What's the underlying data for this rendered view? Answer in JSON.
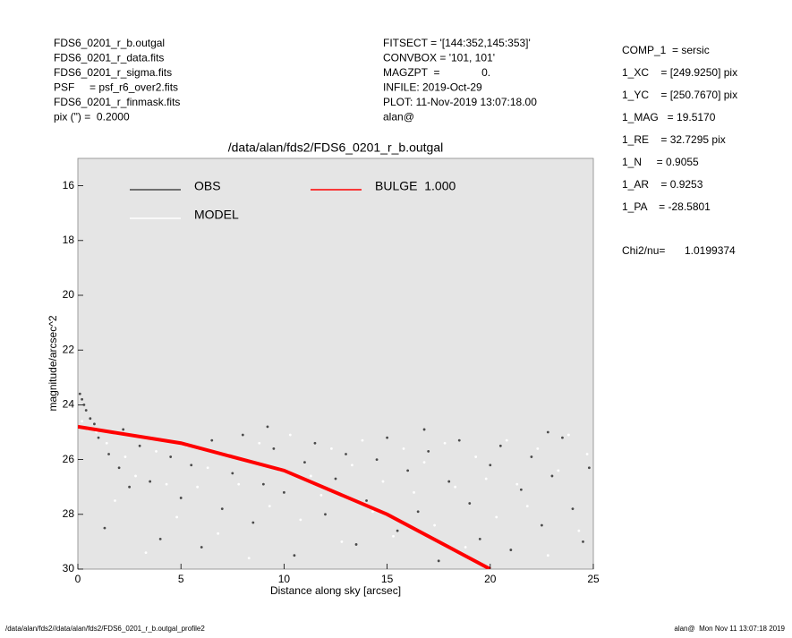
{
  "header": {
    "left": [
      "FDS6_0201_r_b.outgal",
      "FDS6_0201_r_data.fits",
      "FDS6_0201_r_sigma.fits",
      "PSF     = psf_r6_over2.fits",
      "FDS6_0201_r_finmask.fits",
      "pix (\") =  0.2000"
    ],
    "center": [
      "FITSECT = '[144:352,145:353]'",
      "CONVBOX = '101, 101'",
      "MAGZPT  =              0.",
      "INFILE: 2019-Oct-29",
      "PLOT: 11-Nov-2019 13:07:18.00",
      "alan@"
    ],
    "right": [
      "COMP_1  = sersic",
      "1_XC    = [249.9250] pix",
      "1_YC    = [250.7670] pix",
      "1_MAG   = 19.5170",
      "1_RE    = 32.7295 pix",
      "1_N     = 0.9055",
      "1_AR    = 0.9253",
      "1_PA    = -28.5801"
    ],
    "chi2_label": "Chi2/nu=",
    "chi2_value": "1.0199374"
  },
  "footer": {
    "left": "/data/alan/fds2//data/alan/fds2/FDS6_0201_r_b.outgal_profile2",
    "right": "alan@  Mon Nov 11 13:07:18 2019"
  },
  "chart_data": {
    "type": "scatter",
    "title": "/data/alan/fds2/FDS6_0201_r_b.outgal",
    "x_label": "Distance along sky [arcsec]",
    "y_label": "magnitude/arcsec^2",
    "xlim": [
      0,
      25
    ],
    "ylim": [
      30,
      15
    ],
    "xticks": [
      0,
      5,
      10,
      15,
      20,
      25
    ],
    "yticks": [
      16,
      18,
      20,
      22,
      24,
      26,
      28,
      30
    ],
    "background": "#e5e5e5",
    "series": [
      {
        "name": "OBS",
        "color": "#4a4a4a",
        "x": [
          0.1,
          0.2,
          0.3,
          0.4,
          0.6,
          0.8,
          1,
          1.5,
          1.3,
          2,
          2.5,
          3,
          3.5,
          4,
          4.5,
          5,
          5.5,
          6,
          6.5,
          7,
          7.5,
          8,
          8.5,
          9,
          9.5,
          10,
          10.5,
          11,
          11.5,
          12,
          12.5,
          13,
          13.5,
          14,
          14.5,
          15,
          15.5,
          16,
          16.5,
          17,
          17.5,
          18,
          18.5,
          19,
          19.5,
          20,
          20.5,
          21,
          21.5,
          22,
          22.5,
          23,
          23.5,
          24,
          24.5,
          24.8,
          2.2,
          9.2,
          16.8,
          22.8
        ],
        "values": [
          23.6,
          23.8,
          24.0,
          24.2,
          24.5,
          24.7,
          25.2,
          25.8,
          28.5,
          26.3,
          27.0,
          25.5,
          26.8,
          28.9,
          25.9,
          27.4,
          26.2,
          29.2,
          25.3,
          27.8,
          26.5,
          25.1,
          28.3,
          26.9,
          25.6,
          27.2,
          29.5,
          26.1,
          25.4,
          28.0,
          26.7,
          25.8,
          29.1,
          27.5,
          26.0,
          25.2,
          28.6,
          26.4,
          27.9,
          25.7,
          29.7,
          26.8,
          25.3,
          27.6,
          28.9,
          26.2,
          25.5,
          29.3,
          27.1,
          25.9,
          28.4,
          26.6,
          25.2,
          27.8,
          29.0,
          26.3,
          24.9,
          24.8,
          24.9,
          25.0
        ]
      },
      {
        "name": "MODEL",
        "color": "#ffffff",
        "x": [
          0.2,
          0.5,
          0.9,
          1.4,
          1.8,
          2.3,
          2.8,
          3.3,
          3.8,
          4.3,
          4.8,
          5.3,
          5.8,
          6.3,
          6.8,
          7.3,
          7.8,
          8.3,
          8.8,
          9.3,
          9.8,
          10.3,
          10.8,
          11.3,
          11.8,
          12.3,
          12.8,
          13.3,
          13.8,
          14.3,
          14.8,
          15.3,
          15.8,
          16.3,
          16.8,
          17.3,
          17.8,
          18.3,
          18.8,
          19.3,
          19.8,
          20.3,
          20.8,
          21.3,
          21.8,
          22.3,
          22.8,
          23.3,
          23.8,
          24.3,
          24.7
        ],
        "values": [
          24.6,
          24.9,
          25.0,
          25.4,
          27.5,
          25.9,
          26.6,
          29.4,
          25.7,
          26.9,
          28.1,
          25.5,
          27.0,
          26.3,
          28.7,
          25.8,
          26.9,
          29.6,
          25.4,
          27.7,
          26.4,
          25.1,
          28.2,
          26.6,
          27.3,
          25.6,
          29.0,
          26.2,
          25.3,
          27.9,
          26.8,
          28.8,
          25.6,
          27.2,
          26.1,
          28.4,
          25.4,
          27.0,
          29.2,
          25.9,
          26.7,
          28.1,
          25.3,
          26.9,
          27.7,
          25.6,
          29.5,
          26.4,
          25.1,
          28.6,
          25.8
        ]
      },
      {
        "name": "BULGE  1.000",
        "color": "#ff0000",
        "type": "line",
        "x": [
          0,
          5,
          10,
          15,
          20
        ],
        "values": [
          24.8,
          25.4,
          26.4,
          28.0,
          30.0
        ]
      }
    ]
  }
}
